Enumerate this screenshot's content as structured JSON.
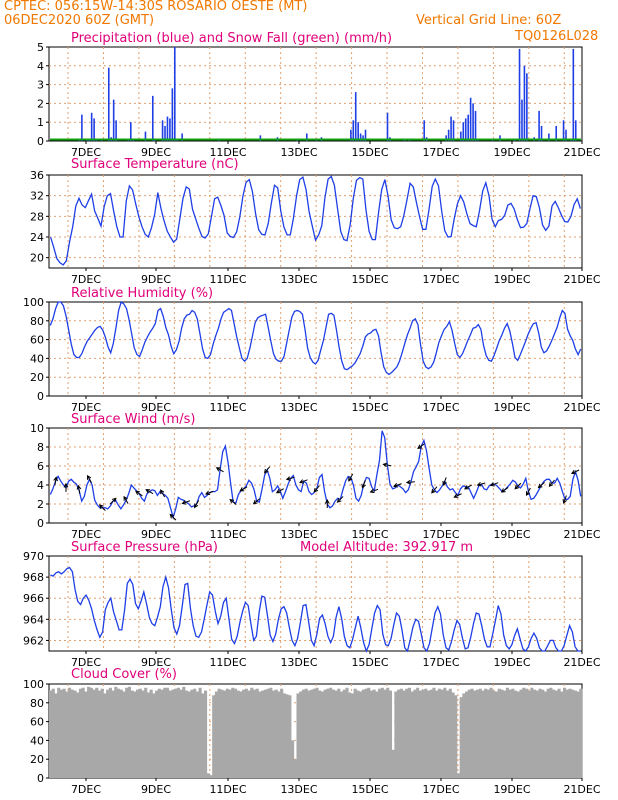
{
  "header": {
    "line1": "CPTEC:   056:15W-14:30S  ROSARIO OESTE (MT)",
    "line2": "06DEC2020 60Z (GMT)",
    "grid_note": "Vertical Grid Line: 60Z",
    "code": "TQ0126L028"
  },
  "colors": {
    "header_text": "#f07800",
    "panel_title": "#e0007a",
    "precip": "#1f3fe6",
    "snow": "#10a010",
    "line": "#1f3fe6",
    "cloud": "#a8a8a8",
    "grid": "#e0a070"
  },
  "x_ticks": [
    "7DEC",
    "9DEC",
    "11DEC",
    "13DEC",
    "15DEC",
    "17DEC",
    "19DEC",
    "21DEC"
  ],
  "chart_data": [
    {
      "id": "precip",
      "type": "bar",
      "title": "Precipitation (blue) and Snow Fall (green) (mm/h)",
      "ylim": [
        0,
        5
      ],
      "yticks": [
        "0",
        "1",
        "2",
        "3",
        "4",
        "5"
      ],
      "x_start": "6DEC 12Z",
      "x_step_hours": 3,
      "snow_values": "all ~0.05",
      "values": [
        0,
        0,
        0,
        0,
        0,
        0,
        0,
        0,
        0,
        0,
        0,
        0,
        0.05,
        1.4,
        0,
        0.1,
        0.05,
        1.5,
        1.2,
        0.1,
        0,
        0.05,
        0,
        0,
        3.9,
        0.2,
        2.2,
        1.1,
        0,
        0,
        0,
        0,
        0.05,
        1.0,
        0.1,
        0,
        0,
        0,
        0,
        0.5,
        0,
        0,
        2.4,
        0.05,
        0,
        0,
        1.1,
        0.8,
        1.3,
        1.2,
        2.8,
        5,
        0.1,
        0,
        0.4,
        0,
        0,
        0,
        0,
        0,
        0,
        0,
        0,
        0,
        0,
        0,
        0,
        0,
        0,
        0.1,
        0,
        0,
        0,
        0,
        0,
        0,
        0,
        0,
        0,
        0,
        0,
        0,
        0,
        0,
        0,
        0,
        0.3,
        0,
        0,
        0,
        0,
        0,
        0,
        0.2,
        0,
        0,
        0,
        0,
        0,
        0,
        0,
        0.1,
        0,
        0,
        0,
        0.4,
        0,
        0,
        0,
        0.1,
        0,
        0.2,
        0,
        0,
        0,
        0,
        0,
        0,
        0,
        0,
        0,
        0,
        0,
        0.6,
        1.1,
        2.6,
        1.0,
        0.4,
        0.3,
        0.6,
        0,
        0,
        0,
        0,
        0,
        0,
        0,
        0,
        1.5,
        0.2,
        0,
        0,
        0,
        0,
        0,
        0.1,
        0,
        0.05,
        0,
        0,
        0,
        0,
        0,
        1.1,
        0.2,
        0,
        0,
        0,
        0,
        0,
        0,
        0,
        0.3,
        0.6,
        1.3,
        1.1,
        0,
        0,
        0.5,
        1.0,
        1.2,
        1.4,
        2.3,
        2.0,
        1.6,
        0.1,
        0,
        0,
        0,
        0,
        0,
        0.05,
        0,
        0,
        0.3,
        0,
        0,
        0,
        0,
        0,
        0.05,
        0,
        4.9,
        2.2,
        4.0,
        3.6,
        0,
        0,
        0.2,
        0,
        1.6,
        0.8,
        0,
        0,
        0.4,
        0,
        0,
        0.8,
        0,
        0,
        1.1,
        0.6,
        0,
        0.1,
        4.9,
        1.1,
        0,
        0
      ]
    },
    {
      "id": "temperature",
      "type": "line",
      "title": "Surface Temperature (nC)",
      "ylim": [
        18,
        36
      ],
      "yticks": [
        "20",
        "24",
        "28",
        "32",
        "36"
      ],
      "values": [
        24,
        22,
        19.8,
        19,
        18.6,
        19.4,
        23,
        26,
        30,
        31.5,
        30.2,
        29.7,
        31,
        32.3,
        29,
        27.6,
        26.1,
        29.9,
        32,
        32.4,
        29,
        26,
        24,
        24,
        31,
        33.9,
        33.1,
        30.4,
        27.9,
        26,
        24.5,
        24,
        25.8,
        28.4,
        32.6,
        29.5,
        27.1,
        25.1,
        24,
        23,
        23.6,
        27.6,
        31.5,
        33.7,
        33.3,
        29.4,
        27.5,
        25.7,
        24.1,
        23.8,
        24.6,
        27.9,
        31.4,
        31.7,
        30.1,
        28.2,
        24.8,
        24.1,
        23.9,
        25,
        27.9,
        32,
        34.6,
        35.1,
        32.8,
        28.5,
        25.4,
        24.5,
        24.4,
        26.6,
        30.5,
        34,
        33.5,
        29,
        25.9,
        24.4,
        24.4,
        27.6,
        32,
        35.1,
        35.6,
        33.2,
        28.8,
        26.1,
        23.4,
        24.4,
        26.2,
        31.7,
        35.2,
        35.7,
        34,
        29.4,
        25.1,
        23.5,
        23.3,
        26.4,
        31.5,
        35,
        35.5,
        35.2,
        29.2,
        25.1,
        23.5,
        23.5,
        28.8,
        33.2,
        35.1,
        32,
        27.3,
        25.8,
        25.6,
        26,
        28.1,
        31.2,
        34.4,
        33.7,
        30.7,
        27.9,
        25.5,
        25.5,
        29.3,
        33.8,
        35.2,
        33.9,
        29,
        25.2,
        24,
        24.1,
        27.6,
        30.4,
        32,
        30.8,
        28.5,
        26.6,
        26.2,
        26,
        29.1,
        32.9,
        34.5,
        32,
        27.4,
        26,
        27.2,
        27.4,
        28.2,
        30.2,
        30.5,
        29.4,
        27.4,
        25.8,
        25.9,
        26.6,
        29.5,
        32,
        31.8,
        29.7,
        26.3,
        25.3,
        26.1,
        30,
        30.9,
        29.7,
        28.2,
        27,
        26.9,
        28,
        30.3,
        31.4,
        29.5
      ]
    },
    {
      "id": "humidity",
      "type": "line",
      "title": "Relative Humidity (%)",
      "ylim": [
        0,
        100
      ],
      "yticks": [
        "0",
        "20",
        "40",
        "60",
        "80",
        "100"
      ],
      "values": [
        75,
        82,
        93,
        100,
        100,
        96,
        85,
        70,
        55,
        44,
        41,
        41,
        45,
        52,
        58,
        62,
        66,
        70,
        73,
        74,
        70,
        62,
        52,
        46,
        56,
        73,
        91,
        100,
        98,
        93,
        81,
        66,
        51,
        44,
        42,
        49,
        57,
        63,
        68,
        72,
        77,
        91,
        93,
        85,
        73,
        65,
        53,
        45,
        49,
        58,
        72,
        82,
        86,
        87,
        91,
        89,
        82,
        66,
        50,
        41,
        40,
        44,
        55,
        64,
        72,
        82,
        89,
        91,
        93,
        91,
        77,
        63,
        51,
        40,
        37,
        40,
        51,
        64,
        78,
        83,
        85,
        86,
        87,
        73,
        58,
        45,
        39,
        37,
        37,
        42,
        56,
        70,
        84,
        90,
        91,
        90,
        87,
        71,
        51,
        41,
        36,
        34,
        38,
        49,
        59,
        73,
        87,
        88,
        86,
        70,
        52,
        37,
        29,
        28,
        30,
        32,
        35,
        40,
        45,
        53,
        63,
        66,
        67,
        70,
        71,
        64,
        46,
        31,
        25,
        23,
        25,
        28,
        31,
        37,
        46,
        56,
        65,
        72,
        80,
        82,
        76,
        55,
        37,
        31,
        29,
        31,
        36,
        46,
        57,
        64,
        71,
        74,
        79,
        70,
        56,
        44,
        41,
        45,
        52,
        59,
        65,
        72,
        73,
        76,
        71,
        54,
        43,
        38,
        37,
        43,
        51,
        59,
        65,
        72,
        77,
        69,
        56,
        41,
        38,
        44,
        51,
        58,
        66,
        72,
        77,
        78,
        67,
        52,
        46,
        48,
        53,
        59,
        66,
        73,
        83,
        91,
        88,
        71,
        64,
        59,
        50,
        44,
        50
      ]
    },
    {
      "id": "wind",
      "type": "line",
      "title": "Surface Wind (m/s)",
      "ylim": [
        0,
        10
      ],
      "yticks": [
        "0",
        "2",
        "4",
        "6",
        "8",
        "10"
      ],
      "values": [
        3,
        3.6,
        4.4,
        4.9,
        4.4,
        4,
        3.7,
        4.4,
        4.6,
        4.3,
        4.1,
        3.5,
        2.3,
        2.8,
        4,
        4.6,
        4,
        2.4,
        1.9,
        1.6,
        1.6,
        1.6,
        1.5,
        1.8,
        2.3,
        2.4,
        1.9,
        1.5,
        1.9,
        2.4,
        3.1,
        4,
        3.7,
        3.4,
        3.1,
        2.6,
        2.3,
        3.1,
        3.3,
        3.5,
        3.4,
        2.9,
        3.3,
        3.1,
        2.9,
        2.6,
        1.6,
        0.6,
        1.5,
        2.7,
        2.5,
        2.4,
        2.2,
        2,
        1.7,
        1.8,
        2,
        2.8,
        3.2,
        2.7,
        2.9,
        3.2,
        3.3,
        3.3,
        3.5,
        5.6,
        7.5,
        8.1,
        6.4,
        4.2,
        2.2,
        2.1,
        3,
        3.4,
        3.6,
        3.9,
        4.5,
        4.2,
        3.5,
        2.3,
        2.2,
        3.5,
        5,
        5.6,
        4.7,
        3.3,
        3.5,
        3.9,
        3.4,
        2.6,
        3.3,
        4.1,
        4.7,
        5,
        4,
        3.5,
        3.3,
        4.4,
        4.2,
        3.3,
        3,
        3.2,
        3.6,
        4.8,
        5.1,
        3.3,
        2,
        1.6,
        1.8,
        2.3,
        2.6,
        2.5,
        3.5,
        4.4,
        4.9,
        4.8,
        4,
        2.6,
        2.3,
        2.9,
        4.1,
        4.8,
        4.7,
        3.8,
        3.4,
        5.1,
        6.6,
        9.7,
        9,
        6.1,
        4.1,
        3.6,
        3.7,
        4,
        3.8,
        3.6,
        3.2,
        3.5,
        4.3,
        5.4,
        5.9,
        6.5,
        8.1,
        8.7,
        7.6,
        5.7,
        4,
        3.5,
        3.2,
        3.5,
        3.9,
        4.4,
        3.8,
        3.5,
        3.6,
        3.2,
        2.9,
        3.6,
        3.9,
        3.8,
        3.8,
        3.2,
        2.6,
        3.2,
        3.9,
        4.1,
        3.6,
        3.5,
        3.9,
        4.1,
        4.1,
        3.9,
        3.6,
        3.3,
        3.5,
        3.8,
        4.1,
        4.5,
        4.3,
        3.9,
        3.7,
        4.1,
        4.7,
        3.3,
        2.5,
        2.6,
        3,
        3.5,
        4,
        4.4,
        4.6,
        4.6,
        4.2,
        4.2,
        4.7,
        4.2,
        3.3,
        2.5,
        2.5,
        2.8,
        4.6,
        5.4,
        4.5,
        2.8
      ],
      "arrow_angles": [
        80,
        90,
        100,
        120,
        135,
        45,
        120,
        145,
        150,
        120,
        135,
        200,
        240,
        200,
        150,
        140,
        210,
        220,
        230,
        210,
        195,
        200,
        230,
        90,
        225,
        240,
        250,
        200,
        170,
        200,
        185,
        215,
        230,
        250,
        205,
        210,
        195,
        200,
        215,
        225,
        240,
        220,
        230,
        250,
        205
      ]
    },
    {
      "id": "pressure",
      "type": "line",
      "title": "Surface Pressure (hPa)",
      "subtitle": "Model Altitude: 392.917 m",
      "ylim": [
        961,
        970
      ],
      "yticks": [
        "962",
        "964",
        "966",
        "968",
        "970"
      ],
      "values": [
        968.2,
        968.1,
        968.4,
        968.5,
        968.3,
        968.5,
        968.8,
        968.9,
        968.5,
        966.8,
        965.7,
        965.4,
        966,
        966.3,
        965.8,
        965,
        963.9,
        963,
        962.3,
        962.8,
        964.9,
        965.6,
        966,
        964.7,
        963.9,
        963,
        963,
        964.9,
        967.4,
        967.8,
        967.3,
        965.5,
        965,
        965.7,
        966.6,
        965.5,
        964.2,
        963.6,
        963.4,
        964.2,
        965.2,
        967.1,
        968,
        967,
        964.9,
        963.2,
        962.6,
        963.4,
        965.3,
        967.3,
        967.4,
        965,
        963.4,
        962.4,
        962.3,
        962.8,
        964,
        965.4,
        966.6,
        966.3,
        964.8,
        963.6,
        964.3,
        965.6,
        966,
        964,
        962.1,
        961.7,
        962.4,
        963.7,
        964.8,
        965.6,
        965.3,
        963.6,
        962,
        962.4,
        964.7,
        966.2,
        966.1,
        964.4,
        962.5,
        961.9,
        962.6,
        964,
        965,
        965.2,
        964.6,
        963.2,
        962,
        961.5,
        962.2,
        963.7,
        965.3,
        965.4,
        963.8,
        962,
        961.5,
        962.6,
        964.1,
        964.4,
        963.6,
        962.4,
        961.8,
        962.4,
        964.2,
        965.2,
        964.1,
        962.4,
        961.5,
        961.3,
        962.1,
        963.2,
        964.3,
        963.2,
        961.8,
        961,
        961.6,
        963.1,
        964.6,
        965.3,
        964.9,
        962.6,
        961.6,
        961.5,
        962.2,
        963.5,
        964.6,
        964.3,
        963,
        961.3,
        961,
        962.1,
        963.3,
        964,
        963.8,
        962.6,
        961.3,
        961,
        961.7,
        963.2,
        964.6,
        965.2,
        964.5,
        962.5,
        961.3,
        961.1,
        961.9,
        963,
        963.9,
        963.5,
        962.2,
        961.2,
        961.3,
        962.3,
        963.6,
        964.6,
        964.5,
        963.4,
        962.1,
        961.4,
        961.4,
        962.6,
        963.9,
        965.3,
        964.5,
        962.5,
        961.5,
        961.2,
        961.6,
        962.5,
        963.1,
        962.1,
        961.2,
        961,
        961.4,
        962.2,
        962.7,
        962.2,
        961.3,
        960.8,
        961,
        961.5,
        962,
        962,
        961.3,
        960.8,
        960.8,
        961.5,
        962.5,
        963.4,
        962.8,
        961.4,
        960.6,
        960.6
      ]
    },
    {
      "id": "cloud",
      "type": "area",
      "title": "Cloud Cover (%)",
      "ylim": [
        0,
        100
      ],
      "yticks": [
        "0",
        "20",
        "40",
        "60",
        "80",
        "100"
      ],
      "values": [
        93,
        95,
        90,
        96,
        94,
        95,
        92,
        96,
        94,
        93,
        91,
        95,
        96,
        92,
        97,
        96,
        94,
        96,
        93,
        95,
        90,
        94,
        96,
        93,
        97,
        95,
        94,
        92,
        96,
        97,
        93,
        92,
        94,
        95,
        93,
        96,
        91,
        94,
        90,
        93,
        95,
        94,
        96,
        96,
        93,
        94,
        95,
        96,
        94,
        97,
        93,
        92,
        94,
        95,
        92,
        96,
        90,
        93,
        5,
        3,
        88,
        92,
        95,
        94,
        93,
        95,
        94,
        96,
        95,
        93,
        92,
        94,
        95,
        93,
        96,
        94,
        95,
        92,
        93,
        94,
        95,
        96,
        93,
        94,
        92,
        95,
        90,
        89,
        88,
        40,
        20,
        90,
        92,
        94,
        95,
        93,
        94,
        95,
        96,
        93,
        92,
        94,
        95,
        96,
        94,
        93,
        95,
        92,
        94,
        96,
        91,
        90,
        95,
        93,
        92,
        94,
        95,
        96,
        93,
        94,
        92,
        95,
        96,
        94,
        96,
        93,
        30,
        92,
        94,
        95,
        93,
        95,
        96,
        92,
        94,
        96,
        93,
        94,
        95,
        93,
        94,
        96,
        93,
        95,
        94,
        96,
        93,
        95,
        91,
        88,
        5,
        86,
        90,
        92,
        94,
        95,
        93,
        94,
        95,
        93,
        95,
        94,
        96,
        93,
        92,
        95,
        94,
        93,
        96,
        94,
        95,
        93,
        92,
        94,
        96,
        95,
        93,
        96,
        94,
        93,
        95,
        94,
        92,
        95,
        96,
        94,
        93,
        95,
        92,
        96,
        94,
        95,
        94,
        93,
        92,
        95
      ]
    }
  ]
}
